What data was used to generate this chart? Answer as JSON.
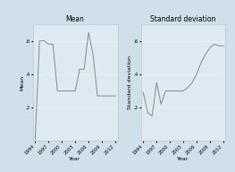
{
  "mean_years": [
    1994,
    1995,
    1996,
    1997,
    1998,
    1999,
    2000,
    2001,
    2002,
    2003,
    2004,
    2005,
    2006,
    2007,
    2008,
    2009,
    2010,
    2011,
    2012
  ],
  "mean_values": [
    0.01,
    0.6,
    0.6,
    0.58,
    0.58,
    0.3,
    0.3,
    0.3,
    0.3,
    0.3,
    0.43,
    0.43,
    0.65,
    0.52,
    0.27,
    0.27,
    0.27,
    0.27,
    0.27
  ],
  "std_years": [
    1994,
    1995,
    1996,
    1997,
    1998,
    1999,
    2000,
    2001,
    2002,
    2003,
    2004,
    2005,
    2006,
    2007,
    2008,
    2009,
    2010,
    2011,
    2012
  ],
  "std_values": [
    0.29,
    0.17,
    0.15,
    0.35,
    0.22,
    0.3,
    0.3,
    0.3,
    0.3,
    0.3,
    0.32,
    0.35,
    0.4,
    0.47,
    0.52,
    0.56,
    0.58,
    0.57,
    0.57
  ],
  "ylim": [
    0,
    0.7
  ],
  "yticks": [
    0.2,
    0.4,
    0.6
  ],
  "ytick_labels": [
    ".2",
    ".4",
    ".6"
  ],
  "xticks": [
    1994,
    1997,
    2000,
    2003,
    2006,
    2009,
    2012
  ],
  "bg_color": "#cfe0ea",
  "plot_bg_color": "#ddeaf2",
  "line_color": "#888888",
  "title1": "Mean",
  "title2": "Standard deviation",
  "xlabel": "Year",
  "ylabel1": "Mean",
  "ylabel2": "Standard deviation"
}
